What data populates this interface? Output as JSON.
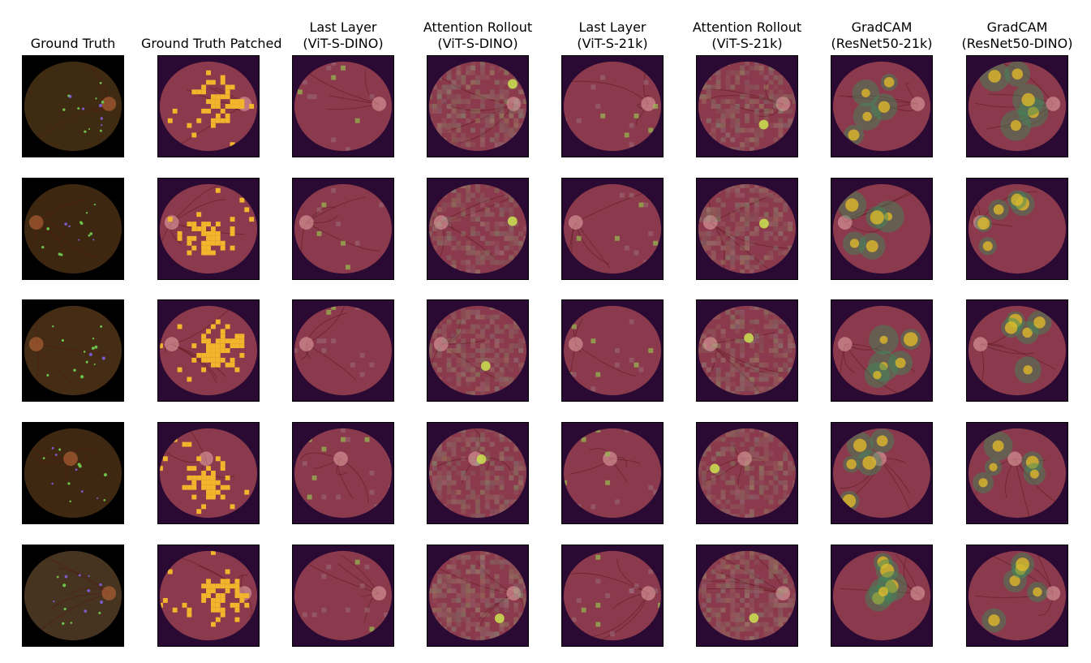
{
  "columns": [
    {
      "id": "gt",
      "line1": "Ground Truth",
      "line2": "",
      "kind": "gt"
    },
    {
      "id": "gt-patched",
      "line1": "Ground Truth Patched",
      "line2": "",
      "kind": "patched"
    },
    {
      "id": "last-dino",
      "line1": "Last Layer",
      "line2": "(ViT-S-DINO)",
      "kind": "lastlayer"
    },
    {
      "id": "roll-dino",
      "line1": "Attention Rollout",
      "line2": "(ViT-S-DINO)",
      "kind": "rollout"
    },
    {
      "id": "last-21k",
      "line1": "Last Layer",
      "line2": "(ViT-S-21k)",
      "kind": "lastlayer"
    },
    {
      "id": "roll-21k",
      "line1": "Attention Rollout",
      "line2": "(ViT-S-21k)",
      "kind": "rollout"
    },
    {
      "id": "gradcam-21k",
      "line1": "GradCAM",
      "line2": "(ResNet50-21k)",
      "kind": "gradcam"
    },
    {
      "id": "gradcam-dino",
      "line1": "GradCAM",
      "line2": "(ResNet50-DINO)",
      "kind": "gradcam"
    }
  ],
  "rows": [
    {
      "disc": "right",
      "gt_color": "#3f2a12"
    },
    {
      "disc": "left",
      "gt_color": "#3e2710"
    },
    {
      "disc": "left",
      "gt_color": "#442d14"
    },
    {
      "disc": "top",
      "gt_color": "#3f2811"
    },
    {
      "disc": "right",
      "gt_color": "#463320"
    }
  ],
  "colors": {
    "background": "#2a0a33",
    "fundus_tint": "#8a3a4c",
    "highlight": "#f2b52b",
    "green": "#6cc24a",
    "purple": "#7a5ac8"
  }
}
